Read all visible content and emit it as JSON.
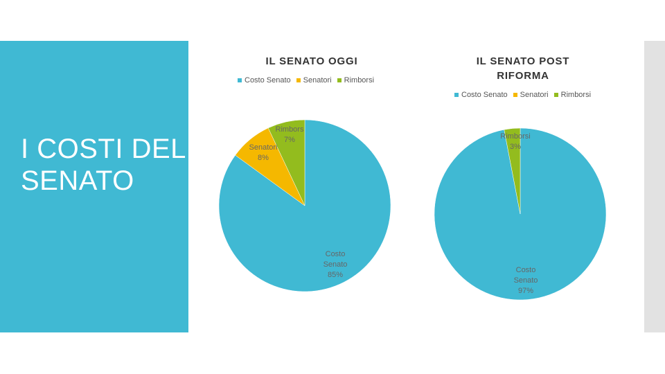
{
  "slide": {
    "title": "I COSTI DEL SENATO"
  },
  "colors": {
    "costo_senato": "#40b9d3",
    "senatori": "#f5b800",
    "rimborsi": "#93bc1e",
    "sidebar": "#40b9d3"
  },
  "chart_data": [
    {
      "type": "pie",
      "title": "IL SENATO OGGI",
      "legend": [
        "Costo Senato",
        "Senatori",
        "Rimborsi"
      ],
      "legend_position": "top",
      "categories": [
        "Costo Senato",
        "Senatori",
        "Rimborsi"
      ],
      "values": [
        85,
        8,
        7
      ],
      "labels": [
        [
          "Costo",
          "Senato",
          "85%"
        ],
        [
          "Senatori",
          "8%"
        ],
        [
          "Rimbors",
          "7%"
        ]
      ]
    },
    {
      "type": "pie",
      "title": "IL SENATO POST RIFORMA",
      "title_lines": [
        "IL SENATO POST",
        "RIFORMA"
      ],
      "legend": [
        "Costo Senato",
        "Senatori",
        "Rimborsi"
      ],
      "legend_position": "top",
      "categories": [
        "Costo Senato",
        "Senatori",
        "Rimborsi"
      ],
      "values": [
        97,
        0,
        3
      ],
      "labels": [
        [
          "Costo",
          "Senato",
          "97%"
        ],
        [],
        [
          "Rimborsi",
          "3%"
        ]
      ]
    }
  ]
}
